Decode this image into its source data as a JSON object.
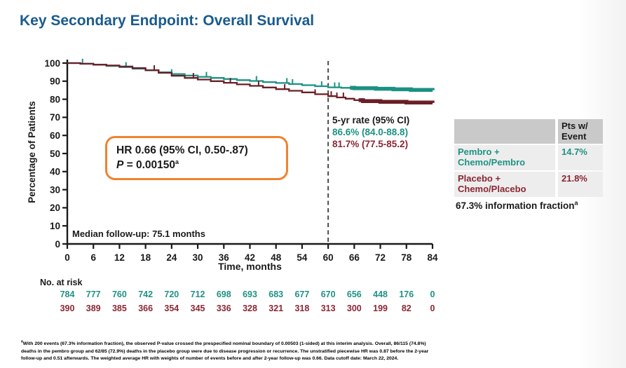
{
  "header": {
    "title": "Key Secondary Endpoint: Overall Survival"
  },
  "colors": {
    "title_blue": "#1A5B8E",
    "pembro_teal": "#1E9284",
    "placebo_maroon": "#8B2633",
    "curve_teal": "#1B9183",
    "curve_maroon": "#6B1F26",
    "accent_orange": "#F0832E",
    "table_header_gray": "#C9C9C9",
    "table_row_gray": "#EDEDED",
    "axis_black": "#1a1a1a",
    "dash_gray": "#4a4a4a"
  },
  "chart_data": {
    "type": "line",
    "subtype": "kaplan-meier-step",
    "title": "",
    "xlabel": "Time, months",
    "ylabel": "Percentage of Patients",
    "xlim": [
      0,
      84
    ],
    "ylim": [
      0,
      100
    ],
    "xticks": [
      0,
      6,
      12,
      18,
      24,
      30,
      36,
      42,
      48,
      54,
      60,
      66,
      72,
      78,
      84
    ],
    "yticks": [
      0,
      10,
      20,
      30,
      40,
      50,
      60,
      70,
      80,
      90,
      100
    ],
    "grid": false,
    "reference_line_x": 60,
    "series": [
      {
        "name": "Pembro + Chemo/Pembro",
        "color": "#1B9183",
        "points": [
          [
            0,
            100
          ],
          [
            3,
            99.7
          ],
          [
            6,
            99.2
          ],
          [
            9,
            98.4
          ],
          [
            12,
            97.8
          ],
          [
            15,
            96.9
          ],
          [
            18,
            96.0
          ],
          [
            21,
            94.9
          ],
          [
            24,
            93.9
          ],
          [
            27,
            93.1
          ],
          [
            30,
            92.4
          ],
          [
            33,
            91.8
          ],
          [
            36,
            91.2
          ],
          [
            39,
            90.6
          ],
          [
            42,
            90.1
          ],
          [
            45,
            89.5
          ],
          [
            48,
            89.0
          ],
          [
            51,
            88.4
          ],
          [
            54,
            87.8
          ],
          [
            57,
            87.2
          ],
          [
            60,
            86.6
          ],
          [
            63,
            86.3
          ],
          [
            66,
            86.1
          ],
          [
            71,
            85.8
          ],
          [
            75,
            85.5
          ],
          [
            79,
            85.2
          ],
          [
            84,
            85.0
          ]
        ],
        "censor_ticks": [
          3.5,
          13.5,
          24,
          32,
          43.5,
          50.5,
          51.8,
          58.5,
          61.5,
          62.5
        ],
        "thick_from": 65,
        "rate_5yr": "86.6% (84.0-88.8)",
        "pts_with_event": "14.7%"
      },
      {
        "name": "Placebo + Chemo/Placebo",
        "color": "#6B1F26",
        "points": [
          [
            0,
            100
          ],
          [
            3,
            99.6
          ],
          [
            6,
            99.1
          ],
          [
            9,
            98.7
          ],
          [
            12,
            98.1
          ],
          [
            15,
            97.2
          ],
          [
            18,
            96.1
          ],
          [
            21,
            94.6
          ],
          [
            24,
            93.0
          ],
          [
            27,
            91.8
          ],
          [
            30,
            90.9
          ],
          [
            33,
            90.0
          ],
          [
            36,
            89.1
          ],
          [
            39,
            88.2
          ],
          [
            42,
            87.4
          ],
          [
            45,
            86.5
          ],
          [
            48,
            85.6
          ],
          [
            51,
            84.7
          ],
          [
            54,
            83.8
          ],
          [
            57,
            82.8
          ],
          [
            60,
            81.7
          ],
          [
            62,
            81.0
          ],
          [
            64,
            80.3
          ],
          [
            66,
            79.5
          ],
          [
            68,
            79.0
          ],
          [
            72,
            78.6
          ],
          [
            78,
            78.2
          ],
          [
            84,
            78.0
          ]
        ],
        "censor_ticks": [
          20,
          29,
          37.5,
          44,
          50,
          57,
          60.7,
          62,
          63.5
        ],
        "thick_from": 67,
        "rate_5yr": "81.7% (77.5-85.2)",
        "pts_with_event": "21.8%"
      }
    ]
  },
  "annotations": {
    "hr_line": "HR 0.66 (95% CI, 0.50-.87)",
    "p_symbol": "P",
    "p_rest": " = 0.00150",
    "p_sup": "a",
    "five_yr_header": "5-yr rate (95% CI)",
    "five_yr_pembro": "86.6% (84.0-88.8)",
    "five_yr_placebo": "81.7% (77.5-85.2)",
    "median_note": "Median follow-up: 75.1 months"
  },
  "risk_table": {
    "label": "No. at risk",
    "months": [
      0,
      6,
      12,
      18,
      24,
      30,
      36,
      42,
      48,
      54,
      60,
      66,
      72,
      78,
      84
    ],
    "pembro": [
      784,
      777,
      760,
      742,
      720,
      712,
      698,
      693,
      683,
      677,
      670,
      656,
      448,
      176,
      0
    ],
    "placebo": [
      390,
      389,
      385,
      366,
      354,
      345,
      336,
      328,
      321,
      318,
      313,
      300,
      199,
      82,
      0
    ]
  },
  "side_table": {
    "header": "Pts w/\nEvent",
    "rows": [
      {
        "label": "Pembro +\nChemo/Pembro",
        "value": "14.7%"
      },
      {
        "label": "Placebo +\nChemo/Placebo",
        "value": "21.8%"
      }
    ],
    "info_fraction": "67.3% information fraction",
    "info_sup": "a"
  },
  "footnote": {
    "sup": "a",
    "text": "With 200 events (67.3% information fraction), the observed P-value crossed the prespecified nominal boundary of 0.00503 (1-sided) at this interim analysis. Overall, 86/115 (74.8%) deaths in the pembro group and 62/85 (72.9%) deaths in the placebo group were due to disease progression or recurrence. The unstratified piecewise HR was 0.87 before the 2-year follow-up and 0.51 afterwards. The weighted average HR with weights of number of events before and after 2-year follow-up was 0.66. Data cutoff date: March 22, 2024."
  }
}
